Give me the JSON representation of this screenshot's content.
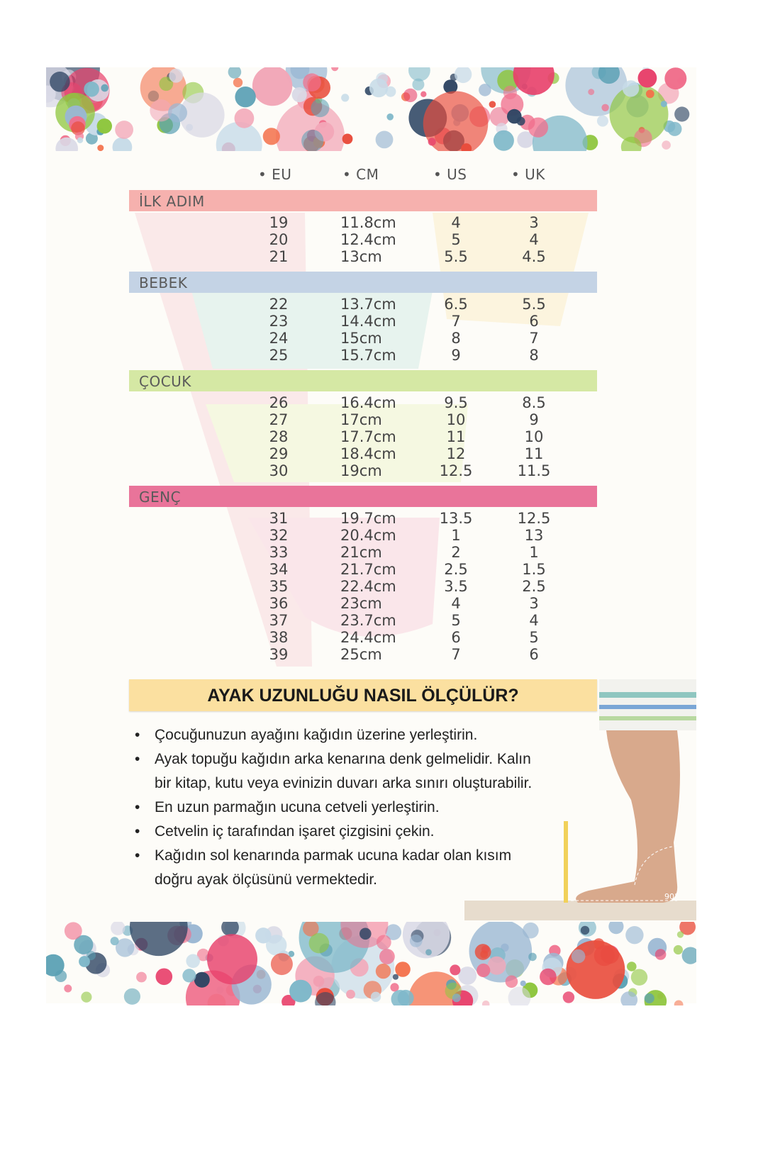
{
  "palette": [
    "#e8416b",
    "#2e4563",
    "#f06f8c",
    "#8fc63f",
    "#7fb8c9",
    "#d9d9e6",
    "#f2a7b8",
    "#5aa0b4",
    "#f3704a",
    "#c7dbe8",
    "#e94d3c",
    "#9ab7d3"
  ],
  "colors": {
    "band_ilk_adim": "#f6b1ae",
    "band_bebek": "#c4d3e5",
    "band_cocuk": "#d5e8a4",
    "band_genc": "#e9749a",
    "title_bar": "#fbe0a0"
  },
  "columns": [
    "• EU",
    "• CM",
    "• US",
    "• UK"
  ],
  "groups": [
    {
      "label": "İLK ADIM",
      "rows": [
        [
          "19",
          "11.8cm",
          "4",
          "3"
        ],
        [
          "20",
          "12.4cm",
          "5",
          "4"
        ],
        [
          "21",
          "13cm",
          "5.5",
          "4.5"
        ]
      ]
    },
    {
      "label": "BEBEK",
      "rows": [
        [
          "22",
          "13.7cm",
          "6.5",
          "5.5"
        ],
        [
          "23",
          "14.4cm",
          "7",
          "6"
        ],
        [
          "24",
          "15cm",
          "8",
          "7"
        ],
        [
          "25",
          "15.7cm",
          "9",
          "8"
        ]
      ]
    },
    {
      "label": "ÇOCUK",
      "rows": [
        [
          "26",
          "16.4cm",
          "9.5",
          "8.5"
        ],
        [
          "27",
          "17cm",
          "10",
          "9"
        ],
        [
          "28",
          "17.7cm",
          "11",
          "10"
        ],
        [
          "29",
          "18.4cm",
          "12",
          "11"
        ],
        [
          "30",
          "19cm",
          "12.5",
          "11.5"
        ]
      ]
    },
    {
      "label": "GENÇ",
      "rows": [
        [
          "31",
          "19.7cm",
          "13.5",
          "12.5"
        ],
        [
          "32",
          "20.4cm",
          "1",
          "13"
        ],
        [
          "33",
          "21cm",
          "2",
          "1"
        ],
        [
          "34",
          "21.7cm",
          "2.5",
          "1.5"
        ],
        [
          "35",
          "22.4cm",
          "3.5",
          "2.5"
        ],
        [
          "36",
          "23cm",
          "4",
          "3"
        ],
        [
          "37",
          "23.7cm",
          "5",
          "4"
        ],
        [
          "38",
          "24.4cm",
          "6",
          "5"
        ],
        [
          "39",
          "25cm",
          "7",
          "6"
        ]
      ]
    }
  ],
  "how_to": {
    "title": "AYAK UZUNLUĞU NASIL ÖLÇÜLÜR?",
    "steps": [
      "Çocuğunuzun ayağını kağıdın üzerine yerleştirin.",
      "Ayak topuğu kağıdın arka kenarına denk gelmelidir. Kalın bir kitap, kutu veya evinizin duvarı arka sınırı oluşturabilir.",
      "En uzun parmağın ucuna cetveli yerleştirin.",
      "Cetvelin iç tarafından işaret çizgisini çekin.",
      "Kağıdın sol kenarında parmak ucuna kadar olan kısım doğru ayak ölçüsünü vermektedir."
    ],
    "angle_label": "90°"
  }
}
